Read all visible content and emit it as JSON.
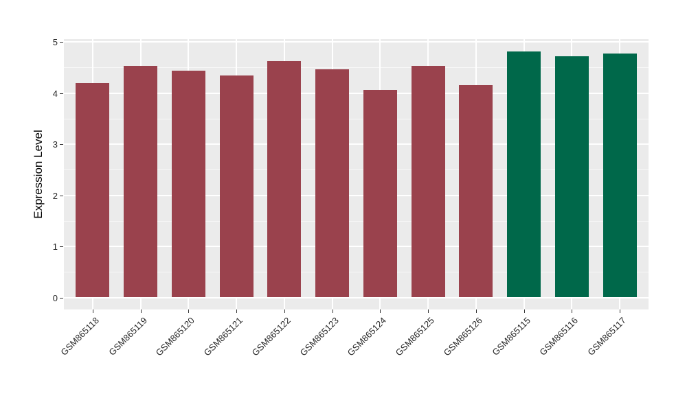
{
  "chart_data": {
    "type": "bar",
    "title": "",
    "ylabel": "Expression Level",
    "xlabel": "",
    "ylim": [
      0,
      5
    ],
    "yticks": [
      "0",
      "1",
      "2",
      "3",
      "4",
      "5"
    ],
    "categories": [
      "GSM865118",
      "GSM865119",
      "GSM865120",
      "GSM865121",
      "GSM865122",
      "GSM865123",
      "GSM865124",
      "GSM865125",
      "GSM865126",
      "GSM865115",
      "GSM865116",
      "GSM865117"
    ],
    "values": [
      4.2,
      4.53,
      4.43,
      4.34,
      4.62,
      4.46,
      4.06,
      4.53,
      4.15,
      4.81,
      4.72,
      4.77
    ],
    "bar_colors": [
      "#9A424D",
      "#9A424D",
      "#9A424D",
      "#9A424D",
      "#9A424D",
      "#9A424D",
      "#9A424D",
      "#9A424D",
      "#9A424D",
      "#00684A",
      "#00684A",
      "#00684A"
    ],
    "group_colors": {
      "group1": "#9A424D",
      "group2": "#00684A"
    },
    "panel_bg": "#EBEBEB",
    "grid_color": "#FFFFFF",
    "axis_text_color": "#262626",
    "grid": "on",
    "legend": "none"
  }
}
